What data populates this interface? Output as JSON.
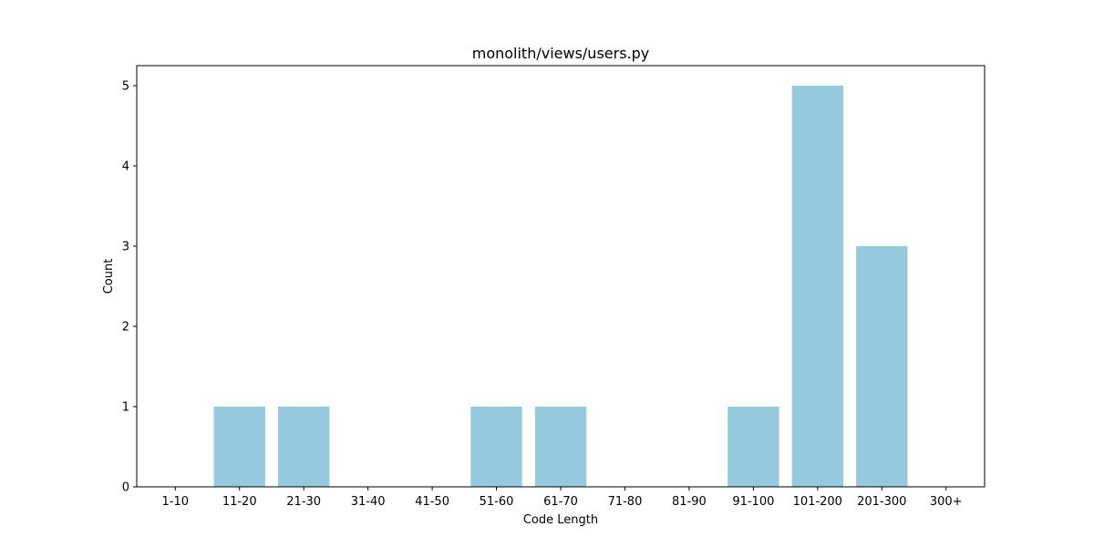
{
  "chart_data": {
    "type": "bar",
    "title": "monolith/views/users.py",
    "xlabel": "Code Length",
    "ylabel": "Count",
    "categories": [
      "1-10",
      "11-20",
      "21-30",
      "31-40",
      "41-50",
      "51-60",
      "61-70",
      "71-80",
      "81-90",
      "91-100",
      "101-200",
      "201-300",
      "300+"
    ],
    "values": [
      0,
      1,
      1,
      0,
      0,
      1,
      1,
      0,
      0,
      1,
      5,
      3,
      0
    ],
    "ylim": [
      0,
      5.25
    ],
    "yticks": [
      0,
      1,
      2,
      3,
      4,
      5
    ],
    "bar_color": "#95c9dd",
    "grid": false,
    "legend": "none"
  }
}
